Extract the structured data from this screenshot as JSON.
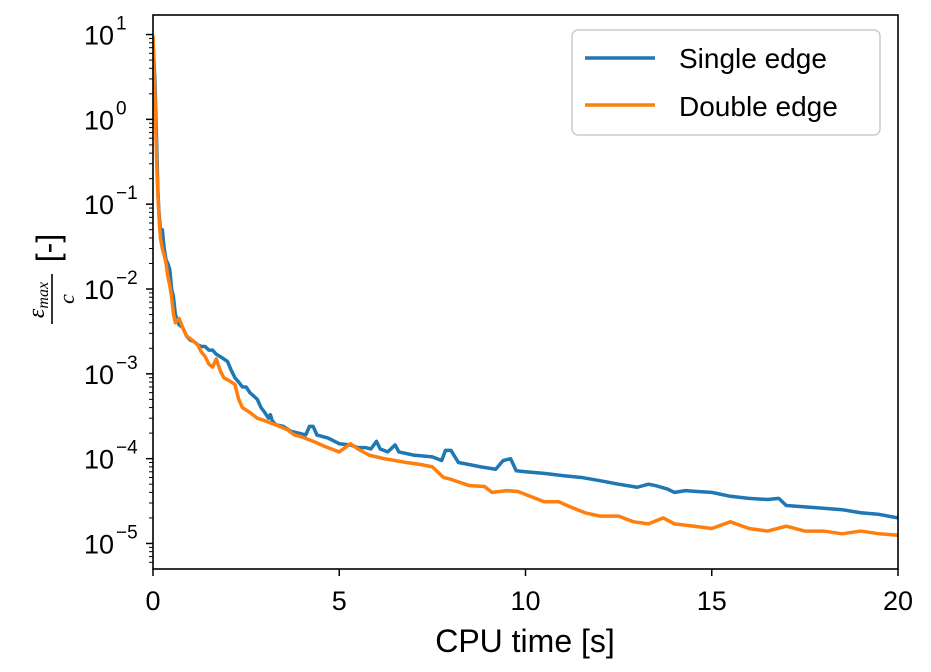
{
  "chart_data": {
    "type": "line",
    "xlabel": "CPU time [s]",
    "ylabel": {
      "numerator_symbol": "ε",
      "numerator_sub": "max",
      "denominator": "c",
      "unit": "[-]"
    },
    "xlim": [
      0,
      20
    ],
    "ylim": [
      5e-06,
      17
    ],
    "yscale": "log",
    "x_ticks": [
      {
        "value": 0,
        "label": "0"
      },
      {
        "value": 5,
        "label": "5"
      },
      {
        "value": 10,
        "label": "10"
      },
      {
        "value": 15,
        "label": "15"
      },
      {
        "value": 20,
        "label": "20"
      }
    ],
    "y_ticks": [
      {
        "value": 10,
        "base": "10",
        "exp": "1"
      },
      {
        "value": 1,
        "base": "10",
        "exp": "0"
      },
      {
        "value": 0.1,
        "base": "10",
        "exp": "−1"
      },
      {
        "value": 0.01,
        "base": "10",
        "exp": "−2"
      },
      {
        "value": 0.001,
        "base": "10",
        "exp": "−3"
      },
      {
        "value": 0.0001,
        "base": "10",
        "exp": "−4"
      },
      {
        "value": 1e-05,
        "base": "10",
        "exp": "−5"
      }
    ],
    "grid": false,
    "legend_position": "top-right",
    "series": [
      {
        "name": "Single edge",
        "color": "#1f77b4",
        "points": [
          [
            0.0,
            8.5
          ],
          [
            0.05,
            3.0
          ],
          [
            0.1,
            0.5
          ],
          [
            0.13,
            0.15
          ],
          [
            0.16,
            0.08
          ],
          [
            0.2,
            0.05
          ],
          [
            0.25,
            0.05
          ],
          [
            0.3,
            0.03
          ],
          [
            0.35,
            0.022
          ],
          [
            0.4,
            0.02
          ],
          [
            0.45,
            0.017
          ],
          [
            0.5,
            0.01
          ],
          [
            0.55,
            0.008
          ],
          [
            0.6,
            0.005
          ],
          [
            0.7,
            0.0038
          ],
          [
            0.8,
            0.0035
          ],
          [
            0.9,
            0.0028
          ],
          [
            1.0,
            0.0025
          ],
          [
            1.1,
            0.0024
          ],
          [
            1.2,
            0.0022
          ],
          [
            1.3,
            0.0021
          ],
          [
            1.4,
            0.0021
          ],
          [
            1.5,
            0.0019
          ],
          [
            1.6,
            0.0019
          ],
          [
            1.7,
            0.0017
          ],
          [
            1.8,
            0.0016
          ],
          [
            1.9,
            0.0015
          ],
          [
            2.0,
            0.0014
          ],
          [
            2.1,
            0.0011
          ],
          [
            2.2,
            0.0009
          ],
          [
            2.3,
            0.0008
          ],
          [
            2.4,
            0.0007
          ],
          [
            2.5,
            0.0007
          ],
          [
            2.6,
            0.0006
          ],
          [
            2.7,
            0.00055
          ],
          [
            2.8,
            0.0005
          ],
          [
            2.9,
            0.0004
          ],
          [
            3.0,
            0.00035
          ],
          [
            3.1,
            0.0003
          ],
          [
            3.15,
            0.00033
          ],
          [
            3.2,
            0.00028
          ],
          [
            3.3,
            0.00025
          ],
          [
            3.5,
            0.00024
          ],
          [
            3.7,
            0.00021
          ],
          [
            3.9,
            0.0002
          ],
          [
            4.1,
            0.00019
          ],
          [
            4.2,
            0.00024
          ],
          [
            4.3,
            0.00024
          ],
          [
            4.4,
            0.00019
          ],
          [
            4.7,
            0.000175
          ],
          [
            5.0,
            0.00015
          ],
          [
            5.3,
            0.000145
          ],
          [
            5.5,
            0.000135
          ],
          [
            5.7,
            0.000135
          ],
          [
            5.85,
            0.00013
          ],
          [
            6.0,
            0.00016
          ],
          [
            6.1,
            0.00013
          ],
          [
            6.3,
            0.00012
          ],
          [
            6.5,
            0.000145
          ],
          [
            6.6,
            0.00012
          ],
          [
            7.0,
            0.00011
          ],
          [
            7.5,
            0.000105
          ],
          [
            7.75,
            9.5e-05
          ],
          [
            7.85,
            0.000125
          ],
          [
            8.0,
            0.000125
          ],
          [
            8.2,
            9e-05
          ],
          [
            8.5,
            8.5e-05
          ],
          [
            8.8,
            8e-05
          ],
          [
            9.2,
            7.5e-05
          ],
          [
            9.4,
            9.5e-05
          ],
          [
            9.6,
            0.0001
          ],
          [
            9.75,
            7.2e-05
          ],
          [
            10.0,
            7e-05
          ],
          [
            10.5,
            6.7e-05
          ],
          [
            11.0,
            6.3e-05
          ],
          [
            11.5,
            6e-05
          ],
          [
            12.0,
            5.5e-05
          ],
          [
            12.5,
            5e-05
          ],
          [
            13.0,
            4.6e-05
          ],
          [
            13.3,
            5e-05
          ],
          [
            13.5,
            4.8e-05
          ],
          [
            13.8,
            4.4e-05
          ],
          [
            14.0,
            4e-05
          ],
          [
            14.3,
            4.2e-05
          ],
          [
            14.6,
            4.1e-05
          ],
          [
            15.0,
            4e-05
          ],
          [
            15.5,
            3.6e-05
          ],
          [
            16.0,
            3.4e-05
          ],
          [
            16.5,
            3.3e-05
          ],
          [
            16.8,
            3.4e-05
          ],
          [
            17.0,
            2.8e-05
          ],
          [
            17.5,
            2.7e-05
          ],
          [
            18.0,
            2.6e-05
          ],
          [
            18.5,
            2.5e-05
          ],
          [
            19.0,
            2.3e-05
          ],
          [
            19.5,
            2.2e-05
          ],
          [
            20.0,
            2e-05
          ]
        ]
      },
      {
        "name": "Double edge",
        "color": "#ff7f0e",
        "points": [
          [
            0.0,
            9.5
          ],
          [
            0.05,
            2.0
          ],
          [
            0.1,
            0.3
          ],
          [
            0.13,
            0.13
          ],
          [
            0.17,
            0.06
          ],
          [
            0.2,
            0.04
          ],
          [
            0.25,
            0.03
          ],
          [
            0.3,
            0.025
          ],
          [
            0.35,
            0.02
          ],
          [
            0.4,
            0.014
          ],
          [
            0.45,
            0.011
          ],
          [
            0.5,
            0.008
          ],
          [
            0.55,
            0.005
          ],
          [
            0.6,
            0.004
          ],
          [
            0.7,
            0.0045
          ],
          [
            0.8,
            0.0035
          ],
          [
            0.9,
            0.0028
          ],
          [
            1.0,
            0.0026
          ],
          [
            1.1,
            0.0024
          ],
          [
            1.2,
            0.0022
          ],
          [
            1.3,
            0.0018
          ],
          [
            1.4,
            0.0016
          ],
          [
            1.5,
            0.0013
          ],
          [
            1.6,
            0.0012
          ],
          [
            1.7,
            0.0015
          ],
          [
            1.8,
            0.0011
          ],
          [
            1.9,
            0.0009
          ],
          [
            2.0,
            0.00085
          ],
          [
            2.1,
            0.0008
          ],
          [
            2.2,
            0.00075
          ],
          [
            2.3,
            0.0005
          ],
          [
            2.4,
            0.0004
          ],
          [
            2.6,
            0.00035
          ],
          [
            2.8,
            0.0003
          ],
          [
            3.0,
            0.00028
          ],
          [
            3.3,
            0.00025
          ],
          [
            3.6,
            0.00022
          ],
          [
            3.8,
            0.00019
          ],
          [
            4.0,
            0.00018
          ],
          [
            4.3,
            0.00016
          ],
          [
            4.6,
            0.00014
          ],
          [
            5.0,
            0.00012
          ],
          [
            5.3,
            0.00015
          ],
          [
            5.5,
            0.00013
          ],
          [
            5.8,
            0.00011
          ],
          [
            6.2,
            0.0001
          ],
          [
            6.8,
            9e-05
          ],
          [
            7.2,
            8.5e-05
          ],
          [
            7.5,
            8e-05
          ],
          [
            7.8,
            6e-05
          ],
          [
            8.0,
            5.7e-05
          ],
          [
            8.5,
            4.8e-05
          ],
          [
            8.9,
            4.7e-05
          ],
          [
            9.1,
            4e-05
          ],
          [
            9.5,
            4.2e-05
          ],
          [
            9.8,
            4.1e-05
          ],
          [
            10.2,
            3.5e-05
          ],
          [
            10.5,
            3.1e-05
          ],
          [
            10.9,
            3.1e-05
          ],
          [
            11.2,
            2.7e-05
          ],
          [
            11.6,
            2.3e-05
          ],
          [
            12.0,
            2.1e-05
          ],
          [
            12.5,
            2.1e-05
          ],
          [
            12.9,
            1.8e-05
          ],
          [
            13.3,
            1.7e-05
          ],
          [
            13.7,
            2e-05
          ],
          [
            14.0,
            1.7e-05
          ],
          [
            14.5,
            1.6e-05
          ],
          [
            15.0,
            1.5e-05
          ],
          [
            15.5,
            1.8e-05
          ],
          [
            16.0,
            1.5e-05
          ],
          [
            16.5,
            1.4e-05
          ],
          [
            17.0,
            1.6e-05
          ],
          [
            17.5,
            1.4e-05
          ],
          [
            18.0,
            1.4e-05
          ],
          [
            18.5,
            1.3e-05
          ],
          [
            19.0,
            1.4e-05
          ],
          [
            19.5,
            1.3e-05
          ],
          [
            20.0,
            1.25e-05
          ]
        ]
      }
    ]
  }
}
